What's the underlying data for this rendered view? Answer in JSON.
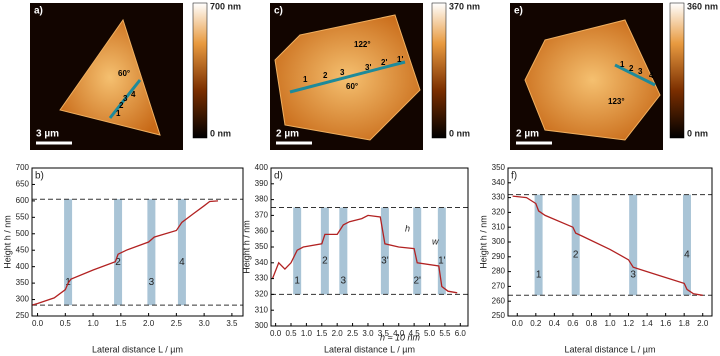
{
  "images": [
    {
      "label": "a)",
      "scale_bar": "3 µm",
      "colorbar_max": "700 nm",
      "colorbar_min": "0 nm",
      "annotations": [
        "60°",
        "1",
        "2",
        "3",
        "4"
      ]
    },
    {
      "label": "c)",
      "scale_bar": "2 µm",
      "colorbar_max": "370 nm",
      "colorbar_min": "0 nm",
      "annotations": [
        "122°",
        "60°",
        "1",
        "2",
        "3",
        "3'",
        "2'",
        "1'"
      ]
    },
    {
      "label": "e)",
      "scale_bar": "2 µm",
      "colorbar_max": "360 nm",
      "colorbar_min": "0 nm",
      "annotations": [
        "123°",
        "1",
        "2",
        "3",
        "4"
      ]
    }
  ],
  "chart_data": [
    {
      "type": "line",
      "panel": "b)",
      "xlabel": "Lateral distance L / µm",
      "ylabel": "Height h / nm",
      "color": "#b22222",
      "x": [
        -0.1,
        0.0,
        0.3,
        0.5,
        0.55,
        0.6,
        1.0,
        1.4,
        1.45,
        1.6,
        2.0,
        2.1,
        2.5,
        2.6,
        2.8,
        3.0,
        3.1,
        3.25
      ],
      "values": [
        283,
        288,
        305,
        330,
        350,
        362,
        390,
        415,
        438,
        450,
        475,
        490,
        510,
        535,
        560,
        585,
        598,
        600
      ],
      "xlim": [
        -0.1,
        3.7
      ],
      "ylim": [
        250,
        700
      ],
      "xticks": [
        {
          "value": 0,
          "label": "0.0"
        },
        {
          "value": 0.5,
          "label": "0.5"
        },
        {
          "value": 1,
          "label": "1.0"
        },
        {
          "value": 1.5,
          "label": "1.5"
        },
        {
          "value": 2,
          "label": "2.0"
        },
        {
          "value": 2.5,
          "label": "2.5"
        },
        {
          "value": 3,
          "label": "3.0"
        },
        {
          "value": 3.5,
          "label": "3.5"
        }
      ],
      "yticks": [
        250,
        300,
        350,
        400,
        450,
        500,
        550,
        600,
        650,
        700
      ],
      "reference_lines": [
        605,
        283
      ],
      "steps": {
        "x": [
          0.55,
          1.45,
          2.05,
          2.6
        ],
        "labels": [
          "1",
          "2",
          "3",
          "4"
        ]
      },
      "annotations": []
    },
    {
      "type": "line",
      "panel": "d)",
      "xlabel": "Lateral distance L / µm",
      "ylabel": "Height h / nm",
      "color": "#b22222",
      "x": [
        -0.1,
        0.1,
        0.3,
        0.5,
        0.7,
        0.9,
        1.5,
        1.6,
        2.0,
        2.2,
        2.4,
        2.8,
        3.0,
        3.4,
        3.55,
        4.0,
        4.5,
        4.6,
        5.3,
        5.4,
        5.6,
        5.9
      ],
      "values": [
        330,
        340,
        336,
        340,
        348,
        350,
        352,
        358,
        358,
        364,
        366,
        368,
        370,
        369,
        352,
        350,
        349,
        340,
        338,
        325,
        322,
        321
      ],
      "xlim": [
        -0.15,
        6.25
      ],
      "ylim": [
        300,
        400
      ],
      "xticks": [
        {
          "value": 0,
          "label": "0.0"
        },
        {
          "value": 0.5,
          "label": "0.5"
        },
        {
          "value": 1,
          "label": "1.0"
        },
        {
          "value": 1.5,
          "label": "1.5"
        },
        {
          "value": 2,
          "label": "2.0"
        },
        {
          "value": 2.5,
          "label": "2.5"
        },
        {
          "value": 3,
          "label": "3.0"
        },
        {
          "value": 3.5,
          "label": "3.5"
        },
        {
          "value": 4,
          "label": "4.0"
        },
        {
          "value": 4.5,
          "label": "4.5"
        },
        {
          "value": 5,
          "label": "5.0"
        },
        {
          "value": 5.5,
          "label": "5.5"
        },
        {
          "value": 6,
          "label": "6.0"
        }
      ],
      "yticks": [
        300,
        310,
        320,
        330,
        340,
        350,
        360,
        370,
        380,
        390,
        400
      ],
      "reference_lines": [
        375,
        320
      ],
      "steps": {
        "x": [
          0.7,
          1.6,
          2.2,
          3.55,
          4.6,
          5.4
        ],
        "labels": [
          "1",
          "2",
          "3",
          "3'",
          "2'",
          "1'"
        ]
      },
      "annotations": [
        "h",
        "w",
        "h ≈ 10 nm"
      ]
    },
    {
      "type": "line",
      "panel": "f)",
      "xlabel": "Lateral distance L / µm",
      "ylabel": "Height h / nm",
      "color": "#b22222",
      "x": [
        -0.05,
        0.1,
        0.2,
        0.23,
        0.3,
        0.6,
        0.63,
        0.7,
        1.0,
        1.2,
        1.25,
        1.5,
        1.8,
        1.83,
        1.9,
        2.0
      ],
      "values": [
        331,
        330,
        326,
        321,
        318,
        310,
        306,
        304,
        295,
        288,
        283,
        278,
        272,
        268,
        265,
        264
      ],
      "xlim": [
        -0.1,
        2.1
      ],
      "ylim": [
        250,
        350
      ],
      "xticks": [
        {
          "value": 0,
          "label": "0.0"
        },
        {
          "value": 0.2,
          "label": "0.2"
        },
        {
          "value": 0.4,
          "label": "0.4"
        },
        {
          "value": 0.6,
          "label": "0.6"
        },
        {
          "value": 0.8,
          "label": "0.8"
        },
        {
          "value": 1,
          "label": "1.0"
        },
        {
          "value": 1.2,
          "label": "1.2"
        },
        {
          "value": 1.4,
          "label": "1.4"
        },
        {
          "value": 1.6,
          "label": "1.6"
        },
        {
          "value": 1.8,
          "label": "1.8"
        },
        {
          "value": 2,
          "label": "2.0"
        }
      ],
      "yticks": [
        250,
        260,
        270,
        280,
        290,
        300,
        310,
        320,
        330,
        340,
        350
      ],
      "reference_lines": [
        332,
        264
      ],
      "steps": {
        "x": [
          0.23,
          0.63,
          1.25,
          1.83
        ],
        "labels": [
          "1",
          "2",
          "3",
          "4"
        ]
      },
      "annotations": []
    }
  ]
}
